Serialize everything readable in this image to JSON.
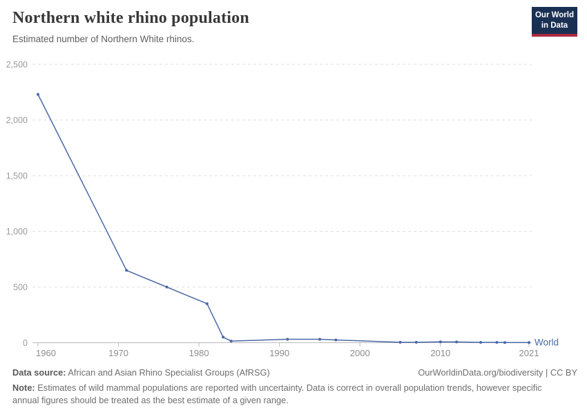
{
  "header": {
    "title": "Northern white rhino population",
    "subtitle": "Estimated number of Northern White rhinos.",
    "logo": {
      "line1": "Our World",
      "line2": "in Data"
    }
  },
  "chart_data": {
    "type": "line",
    "title": "Northern white rhino population",
    "subtitle": "Estimated number of Northern White rhinos.",
    "series": [
      {
        "name": "World",
        "points": [
          [
            1960,
            2230
          ],
          [
            1971,
            650
          ],
          [
            1976,
            500
          ],
          [
            1981,
            350
          ],
          [
            1983,
            50
          ],
          [
            1984,
            15
          ],
          [
            1991,
            31
          ],
          [
            1995,
            31
          ],
          [
            1997,
            25
          ],
          [
            2005,
            4
          ],
          [
            2007,
            4
          ],
          [
            2010,
            8
          ],
          [
            2012,
            7
          ],
          [
            2015,
            3
          ],
          [
            2017,
            3
          ],
          [
            2018,
            2
          ],
          [
            2021,
            2
          ]
        ]
      }
    ],
    "xlabel": "",
    "ylabel": "",
    "xlim": [
      1960,
      2021
    ],
    "ylim": [
      0,
      2500
    ],
    "x_ticks": [
      1960,
      1970,
      1980,
      1990,
      2000,
      2010,
      2021
    ],
    "y_ticks": [
      0,
      500,
      1000,
      1500,
      2000,
      2500
    ],
    "grid": "horizontal-dashed",
    "legend_position": "end-of-line",
    "entity_label": "World",
    "markers": true
  },
  "footer": {
    "source_label": "Data source:",
    "source_value": " African and Asian Rhino Specialist Groups (AfRSG)",
    "link": "OurWorldinData.org/biodiversity | CC BY",
    "note_label": "Note:",
    "note_value": " Estimates of wild mammal populations are reported with uncertainty. Data is correct in overall population trends, however specific annual figures should be treated as the best estimate of a given range."
  },
  "colors": {
    "line": "#4a68a5",
    "entity_label": "#4a68a5",
    "grid": "#dedede",
    "axis": "#b9b9b9",
    "y_tick_text": "#9b9b9b",
    "x_tick_text": "#8c8c8c",
    "logo_bg": "#1a3053",
    "logo_red": "#ae2a3e"
  }
}
